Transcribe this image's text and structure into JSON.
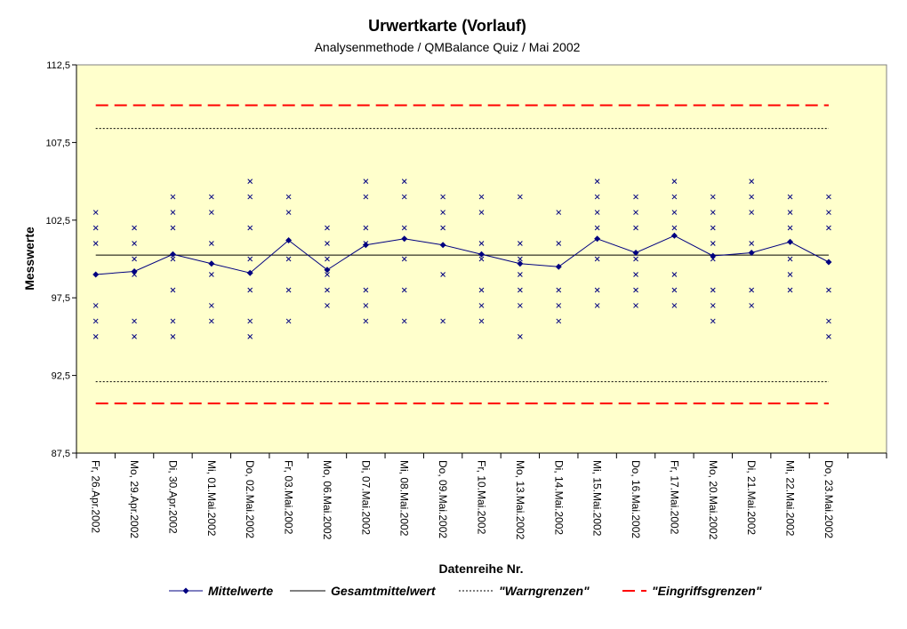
{
  "chart_data": {
    "type": "line",
    "title": "Urwertkarte (Vorlauf)",
    "subtitle": "Analysenmethode / QMBalance Quiz / Mai 2002",
    "x_label": "Datenreihe Nr.",
    "y_label": "Messwerte",
    "categories": [
      "Fr, 26.Apr.2002",
      "Mo, 29.Apr.2002",
      "Di, 30.Apr.2002",
      "Mi, 01.Mai.2002",
      "Do, 02.Mai.2002",
      "Fr, 03.Mai.2002",
      "Mo, 06.Mai.2002",
      "Di, 07.Mai.2002",
      "Mi, 08.Mai.2002",
      "Do, 09.Mai.2002",
      "Fr, 10.Mai.2002",
      "Mo, 13.Mai.2002",
      "Di, 14.Mai.2002",
      "Mi, 15.Mai.2002",
      "Do, 16.Mai.2002",
      "Fr, 17.Mai.2002",
      "Mo, 20.Mai.2002",
      "Di, 21.Mai.2002",
      "Mi, 22.Mai.2002",
      "Do, 23.Mai.2002",
      null
    ],
    "ylim": [
      87.5,
      112.5
    ],
    "yticks": [
      {
        "value": 87.5,
        "label": "87,5"
      },
      {
        "value": 92.5,
        "label": "92,5"
      },
      {
        "value": 97.5,
        "label": "97,5"
      },
      {
        "value": 102.5,
        "label": "102,5"
      },
      {
        "value": 107.5,
        "label": "107,5"
      },
      {
        "value": 112.5,
        "label": "112,5"
      }
    ],
    "measurements_color": "#000080",
    "measurements": [
      [
        103,
        102,
        101,
        97,
        96,
        95
      ],
      [
        102,
        101,
        100,
        99,
        96,
        95
      ],
      [
        104,
        103,
        102,
        100,
        98,
        96,
        95
      ],
      [
        104,
        103,
        101,
        99,
        97,
        96
      ],
      [
        105,
        104,
        102,
        100,
        98,
        96,
        95
      ],
      [
        104,
        103,
        100,
        98,
        96
      ],
      [
        102,
        101,
        100,
        99,
        98,
        97
      ],
      [
        105,
        104,
        102,
        101,
        98,
        97,
        96
      ],
      [
        105,
        104,
        102,
        100,
        98,
        96
      ],
      [
        104,
        103,
        102,
        99,
        96
      ],
      [
        104,
        103,
        101,
        100,
        98,
        97,
        96
      ],
      [
        104,
        101,
        100,
        99,
        98,
        97,
        95
      ],
      [
        103,
        101,
        98,
        97,
        96
      ],
      [
        105,
        104,
        103,
        102,
        100,
        98,
        97
      ],
      [
        104,
        103,
        102,
        100,
        99,
        98,
        97
      ],
      [
        105,
        104,
        103,
        102,
        99,
        98,
        97
      ],
      [
        104,
        103,
        102,
        101,
        100,
        98,
        97,
        96
      ],
      [
        105,
        104,
        103,
        101,
        98,
        97
      ],
      [
        104,
        103,
        102,
        100,
        99,
        98
      ],
      [
        104,
        103,
        102,
        98,
        96,
        95
      ]
    ],
    "series": [
      {
        "name": "Mittelwerte",
        "color": "#000080",
        "values": [
          99.0,
          99.2,
          100.3,
          99.7,
          99.1,
          101.2,
          99.3,
          100.9,
          101.3,
          100.9,
          100.3,
          99.7,
          99.5,
          101.3,
          100.4,
          101.5,
          100.2,
          100.4,
          101.1,
          99.8,
          null
        ]
      },
      {
        "name": "Gesamtmittelwert",
        "color": "#000000",
        "style": "solid",
        "levels": [
          100.25
        ]
      },
      {
        "name": "\"Warngrenzen\"",
        "color": "#000000",
        "style": "dotted",
        "levels": [
          108.4,
          92.1
        ]
      },
      {
        "name": "\"Eingriffsgrenzen\"",
        "color": "#ff0000",
        "style": "dashed",
        "levels": [
          109.9,
          90.7
        ]
      }
    ]
  }
}
